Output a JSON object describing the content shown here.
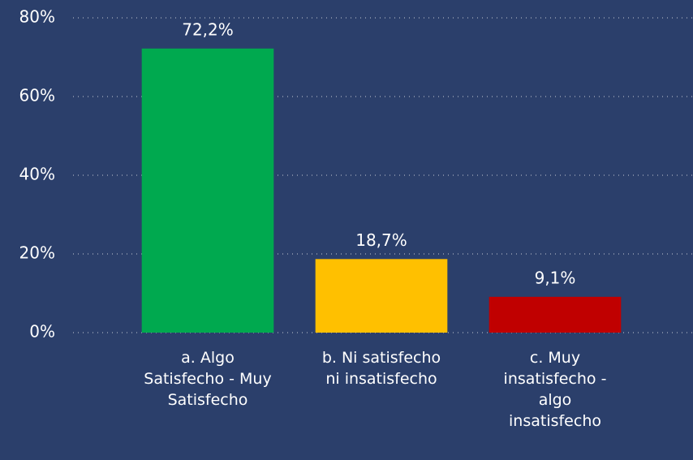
{
  "chart_data": {
    "type": "bar",
    "categories": [
      "a. Algo\nSatisfecho - Muy\nSatisfecho",
      "b. Ni satisfecho\nni insatisfecho",
      "c. Muy\ninsatisfecho -\nalgo\ninsatisfecho"
    ],
    "values": [
      72.2,
      18.7,
      9.1
    ],
    "value_labels": [
      "72,2%",
      "18,7%",
      "9,1%"
    ],
    "colors": [
      "#00a94f",
      "#ffc000",
      "#c00000"
    ],
    "ylim": [
      0,
      80
    ],
    "yticks": [
      {
        "value": 0,
        "label": "0%"
      },
      {
        "value": 20,
        "label": "20%"
      },
      {
        "value": 40,
        "label": "40%"
      },
      {
        "value": 60,
        "label": "60%"
      },
      {
        "value": 80,
        "label": "80%"
      }
    ],
    "grid": true
  }
}
